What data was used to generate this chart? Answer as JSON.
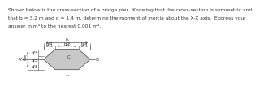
{
  "b": 3.2,
  "d": 1.4,
  "shape_color": "#c8c8c8",
  "shape_edge_color": "#444444",
  "bg_color": "#ffffff",
  "text_color": "#333333",
  "line_color": "#555555",
  "title_line1": "Shown below is the cross-section of a bridge pier.  Knowing that the cross-section is symmetric and",
  "title_line2": "that b = 3.2 m and d = 1.4 m, determine the moment of inertia about the X-X axis.  Express your",
  "title_line3": "answer in m⁴ to the nearest 0.001 m⁴.",
  "title_fontsize": 4.3,
  "dim_fontsize": 3.8,
  "label_fontsize": 4.2,
  "fig_width": 2.0,
  "fig_height": 0.87
}
